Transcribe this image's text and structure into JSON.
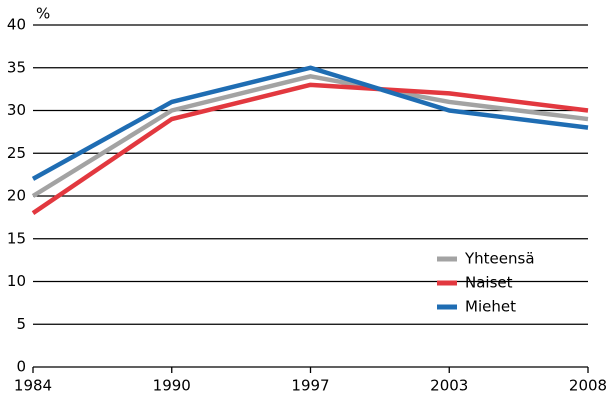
{
  "chart_data": {
    "type": "line",
    "y_axis_label": "%",
    "categories": [
      "1984",
      "1990",
      "1997",
      "2003",
      "2008"
    ],
    "series": [
      {
        "name": "Yhteensä",
        "color": "#a3a3a3",
        "values": [
          20,
          30,
          34,
          31,
          29
        ]
      },
      {
        "name": "Naiset",
        "color": "#e2383f",
        "values": [
          18,
          29,
          33,
          32,
          30
        ]
      },
      {
        "name": "Miehet",
        "color": "#1f6db3",
        "values": [
          22,
          31,
          35,
          30,
          28
        ]
      }
    ],
    "ylim": [
      0,
      40
    ],
    "yticks": [
      0,
      5,
      10,
      15,
      20,
      25,
      30,
      35,
      40
    ],
    "grid": true,
    "legend": "lower right"
  }
}
